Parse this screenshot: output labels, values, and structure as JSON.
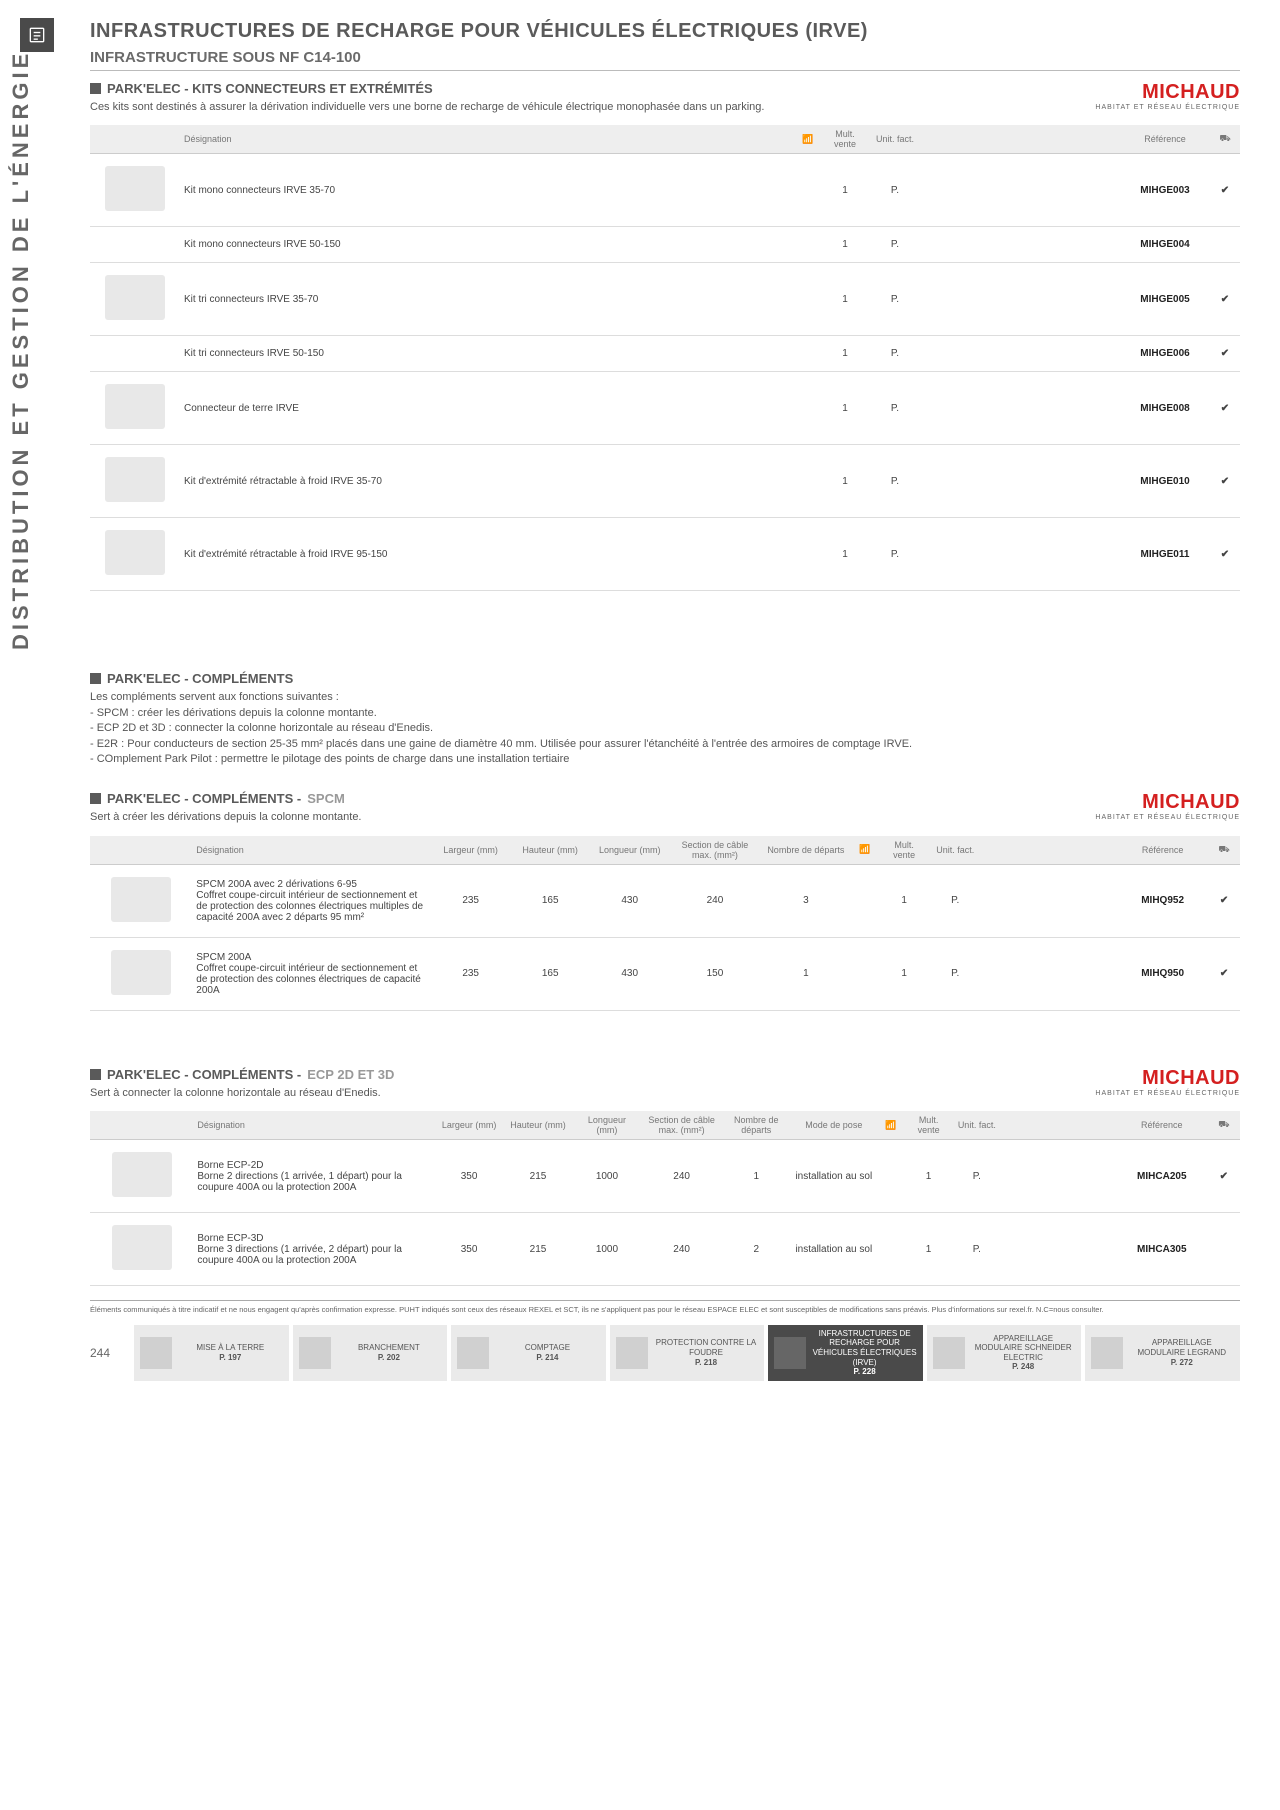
{
  "sideLabel": "DISTRIBUTION ET GESTION DE L'ÉNERGIE",
  "pageTitle": "INFRASTRUCTURES DE RECHARGE POUR VÉHICULES ÉLECTRIQUES (IRVE)",
  "pageSubtitle": "INFRASTRUCTURE SOUS NF C14-100",
  "brand": {
    "name": "MICHAUD",
    "tag": "HABITAT ET RÉSEAU ÉLECTRIQUE",
    "color": "#d42020"
  },
  "section1": {
    "title": "PARK'ELEC - KITS CONNECTEURS ET EXTRÉMITÉS",
    "intro": "Ces kits sont destinés à assurer la dérivation individuelle vers une borne de recharge de véhicule électrique monophasée dans un parking.",
    "headers": {
      "des": "Désignation",
      "mult": "Mult. vente",
      "unit": "Unit. fact.",
      "ref": "Référence"
    },
    "rows": [
      {
        "img": true,
        "des": "Kit mono connecteurs IRVE 35-70",
        "mult": "1",
        "unit": "P.",
        "ref": "MIHGE003",
        "chk": "✔"
      },
      {
        "img": false,
        "des": "Kit mono connecteurs IRVE 50-150",
        "mult": "1",
        "unit": "P.",
        "ref": "MIHGE004",
        "chk": ""
      },
      {
        "img": true,
        "des": "Kit tri connecteurs IRVE 35-70",
        "mult": "1",
        "unit": "P.",
        "ref": "MIHGE005",
        "chk": "✔"
      },
      {
        "img": false,
        "des": "Kit tri connecteurs IRVE 50-150",
        "mult": "1",
        "unit": "P.",
        "ref": "MIHGE006",
        "chk": "✔"
      },
      {
        "img": true,
        "des": "Connecteur de terre IRVE",
        "mult": "1",
        "unit": "P.",
        "ref": "MIHGE008",
        "chk": "✔"
      },
      {
        "img": true,
        "des": "Kit d'extrémité rétractable à froid IRVE 35-70",
        "mult": "1",
        "unit": "P.",
        "ref": "MIHGE010",
        "chk": "✔"
      },
      {
        "img": true,
        "des": "Kit d'extrémité rétractable à froid IRVE 95-150",
        "mult": "1",
        "unit": "P.",
        "ref": "MIHGE011",
        "chk": "✔"
      }
    ]
  },
  "section2": {
    "title": "PARK'ELEC - COMPLÉMENTS",
    "intro": "Les compléments servent aux fonctions suivantes :\n- SPCM : créer les dérivations depuis la colonne montante.\n- ECP 2D et 3D : connecter la colonne horizontale au réseau d'Enedis.\n- E2R : Pour conducteurs de section 25-35 mm² placés dans une gaine de diamètre 40 mm. Utilisée pour assurer l'étanchéité à l'entrée des armoires de comptage IRVE.\n- COmplement Park Pilot : permettre le pilotage des points de charge dans une installation tertiaire"
  },
  "section3": {
    "title": "PARK'ELEC - COMPLÉMENTS - ",
    "titleSub": "SPCM",
    "intro": "Sert à créer les dérivations depuis la colonne montante.",
    "headers": {
      "des": "Désignation",
      "larg": "Largeur (mm)",
      "haut": "Hauteur (mm)",
      "long": "Longueur (mm)",
      "sec": "Section de câble max. (mm²)",
      "dep": "Nombre de départs",
      "mult": "Mult. vente",
      "unit": "Unit. fact.",
      "ref": "Référence"
    },
    "rows": [
      {
        "des": "SPCM 200A avec 2 dérivations 6-95\nCoffret coupe-circuit intérieur de sectionnement et de protection des colonnes électriques multiples de capacité 200A avec 2 départs 95 mm²",
        "larg": "235",
        "haut": "165",
        "long": "430",
        "sec": "240",
        "dep": "3",
        "mult": "1",
        "unit": "P.",
        "ref": "MIHQ952",
        "chk": "✔"
      },
      {
        "des": "SPCM 200A\nCoffret coupe-circuit intérieur de sectionnement et de protection des colonnes électriques de capacité 200A",
        "larg": "235",
        "haut": "165",
        "long": "430",
        "sec": "150",
        "dep": "1",
        "mult": "1",
        "unit": "P.",
        "ref": "MIHQ950",
        "chk": "✔"
      }
    ]
  },
  "section4": {
    "title": "PARK'ELEC - COMPLÉMENTS - ",
    "titleSub": "ECP 2D ET 3D",
    "intro": "Sert à connecter la colonne horizontale au réseau d'Enedis.",
    "headers": {
      "des": "Désignation",
      "larg": "Largeur (mm)",
      "haut": "Hauteur (mm)",
      "long": "Longueur (mm)",
      "sec": "Section de câble max. (mm²)",
      "dep": "Nombre de départs",
      "mode": "Mode de pose",
      "mult": "Mult. vente",
      "unit": "Unit. fact.",
      "ref": "Référence"
    },
    "rows": [
      {
        "des": "Borne ECP-2D\nBorne 2 directions (1 arrivée, 1 départ) pour la coupure 400A ou la protection 200A",
        "larg": "350",
        "haut": "215",
        "long": "1000",
        "sec": "240",
        "dep": "1",
        "mode": "installation au sol",
        "mult": "1",
        "unit": "P.",
        "ref": "MIHCA205",
        "chk": "✔"
      },
      {
        "des": "Borne ECP-3D\nBorne 3 directions (1 arrivée, 2 départ) pour la coupure 400A ou la protection 200A",
        "larg": "350",
        "haut": "215",
        "long": "1000",
        "sec": "240",
        "dep": "2",
        "mode": "installation au sol",
        "mult": "1",
        "unit": "P.",
        "ref": "MIHCA305",
        "chk": ""
      }
    ]
  },
  "footnote": "Éléments communiqués à titre indicatif et ne nous engagent qu'après confirmation expresse. PUHT indiqués sont ceux des réseaux REXEL et SCT, ils ne s'appliquent pas pour le réseau ESPACE ELEC et sont susceptibles de modifications sans préavis. Plus d'informations sur rexel.fr. N.C=nous consulter.",
  "pageNumber": "244",
  "nav": [
    {
      "label": "MISE À LA TERRE",
      "page": "P. 197",
      "active": false
    },
    {
      "label": "BRANCHEMENT",
      "page": "P. 202",
      "active": false
    },
    {
      "label": "COMPTAGE",
      "page": "P. 214",
      "active": false
    },
    {
      "label": "PROTECTION CONTRE LA FOUDRE",
      "page": "P. 218",
      "active": false
    },
    {
      "label": "INFRASTRUCTURES DE RECHARGE POUR VÉHICULES ÉLECTRIQUES (IRVE)",
      "page": "P. 228",
      "active": true
    },
    {
      "label": "APPAREILLAGE MODULAIRE SCHNEIDER ELECTRIC",
      "page": "P. 248",
      "active": false
    },
    {
      "label": "APPAREILLAGE MODULAIRE LEGRAND",
      "page": "P. 272",
      "active": false
    }
  ]
}
